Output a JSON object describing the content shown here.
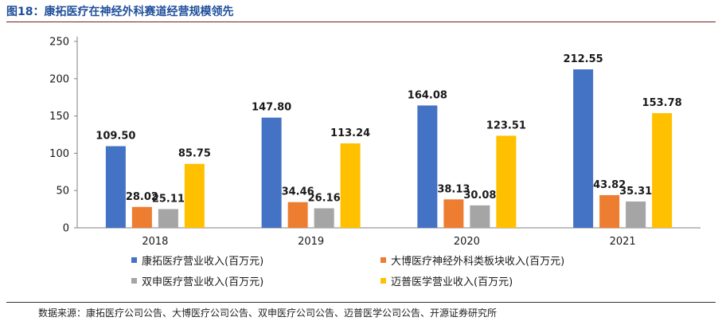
{
  "header": {
    "figure_title": "图18：康拓医疗在神经外科赛道经营规模领先"
  },
  "footer": {
    "source": "数据来源：康拓医疗公司公告、大博医疗公司公告、双申医疗公司公告、迈普医学公司公告、开源证券研究所"
  },
  "chart_data": {
    "type": "bar",
    "categories": [
      "2018",
      "2019",
      "2020",
      "2021"
    ],
    "series": [
      {
        "name": "康拓医疗营业收入(百万元)",
        "values": [
          109.5,
          147.8,
          164.08,
          212.55
        ],
        "color": "#4472c4"
      },
      {
        "name": "大博医疗神经外科类板块收入(百万元)",
        "values": [
          28.02,
          34.46,
          38.13,
          43.82
        ],
        "color": "#ed7d31"
      },
      {
        "name": "双申医疗营业收入(百万元)",
        "values": [
          25.11,
          26.16,
          30.08,
          35.31
        ],
        "color": "#a5a5a5"
      },
      {
        "name": "迈普医学营业收入(百万元)",
        "values": [
          85.75,
          113.24,
          123.51,
          153.78
        ],
        "color": "#ffc000"
      }
    ],
    "ylim": [
      0,
      250
    ],
    "yticks": [
      0,
      50,
      100,
      150,
      200,
      250
    ],
    "grid": false,
    "legend_position": "bottom",
    "data_labels": true
  }
}
